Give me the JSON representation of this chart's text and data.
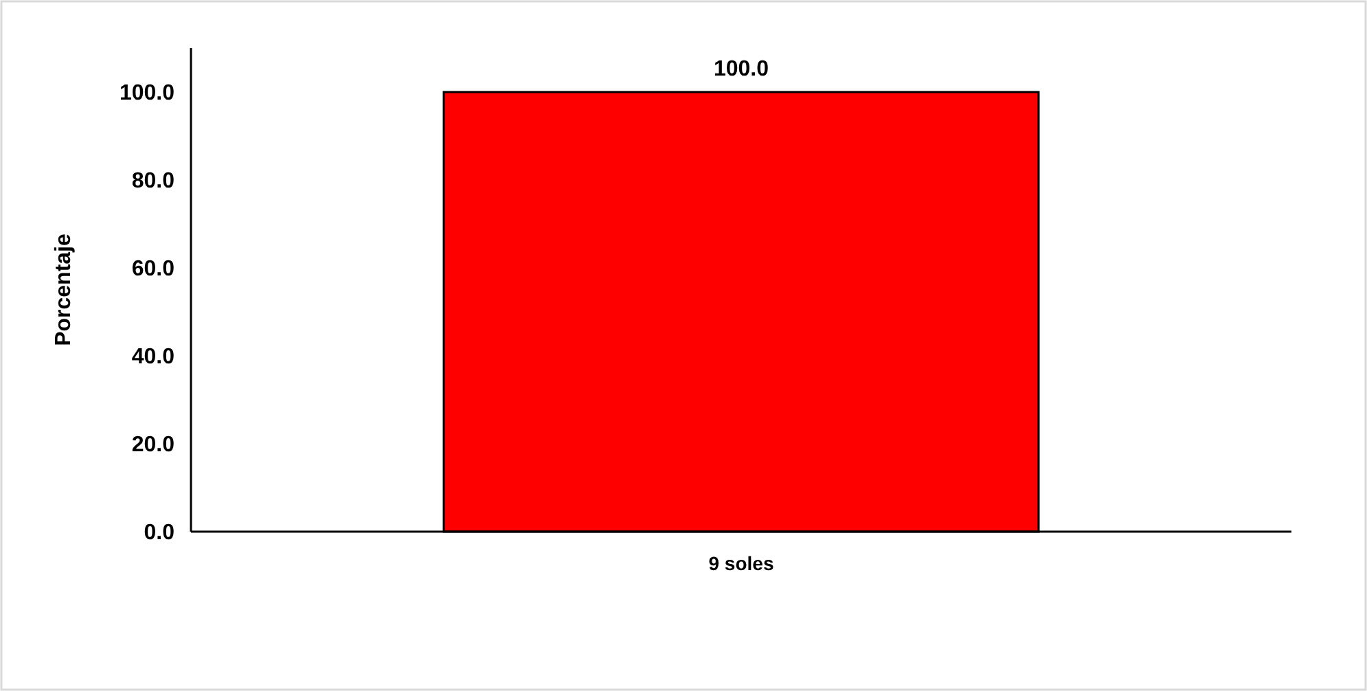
{
  "chart_data": {
    "type": "bar",
    "ylabel": "Porcentaje",
    "categories": [
      "9 soles"
    ],
    "values": [
      100
    ],
    "color": "#ff0000",
    "value_labels": [
      "100.0"
    ],
    "ylim": [
      0,
      110
    ],
    "yticks": [
      {
        "value": 0,
        "label": "0.0"
      },
      {
        "value": 20,
        "label": "20.0"
      },
      {
        "value": 40,
        "label": "40.0"
      },
      {
        "value": 60,
        "label": "60.0"
      },
      {
        "value": 80,
        "label": "80.0"
      },
      {
        "value": 100,
        "label": "100.0"
      }
    ],
    "grid": false
  }
}
